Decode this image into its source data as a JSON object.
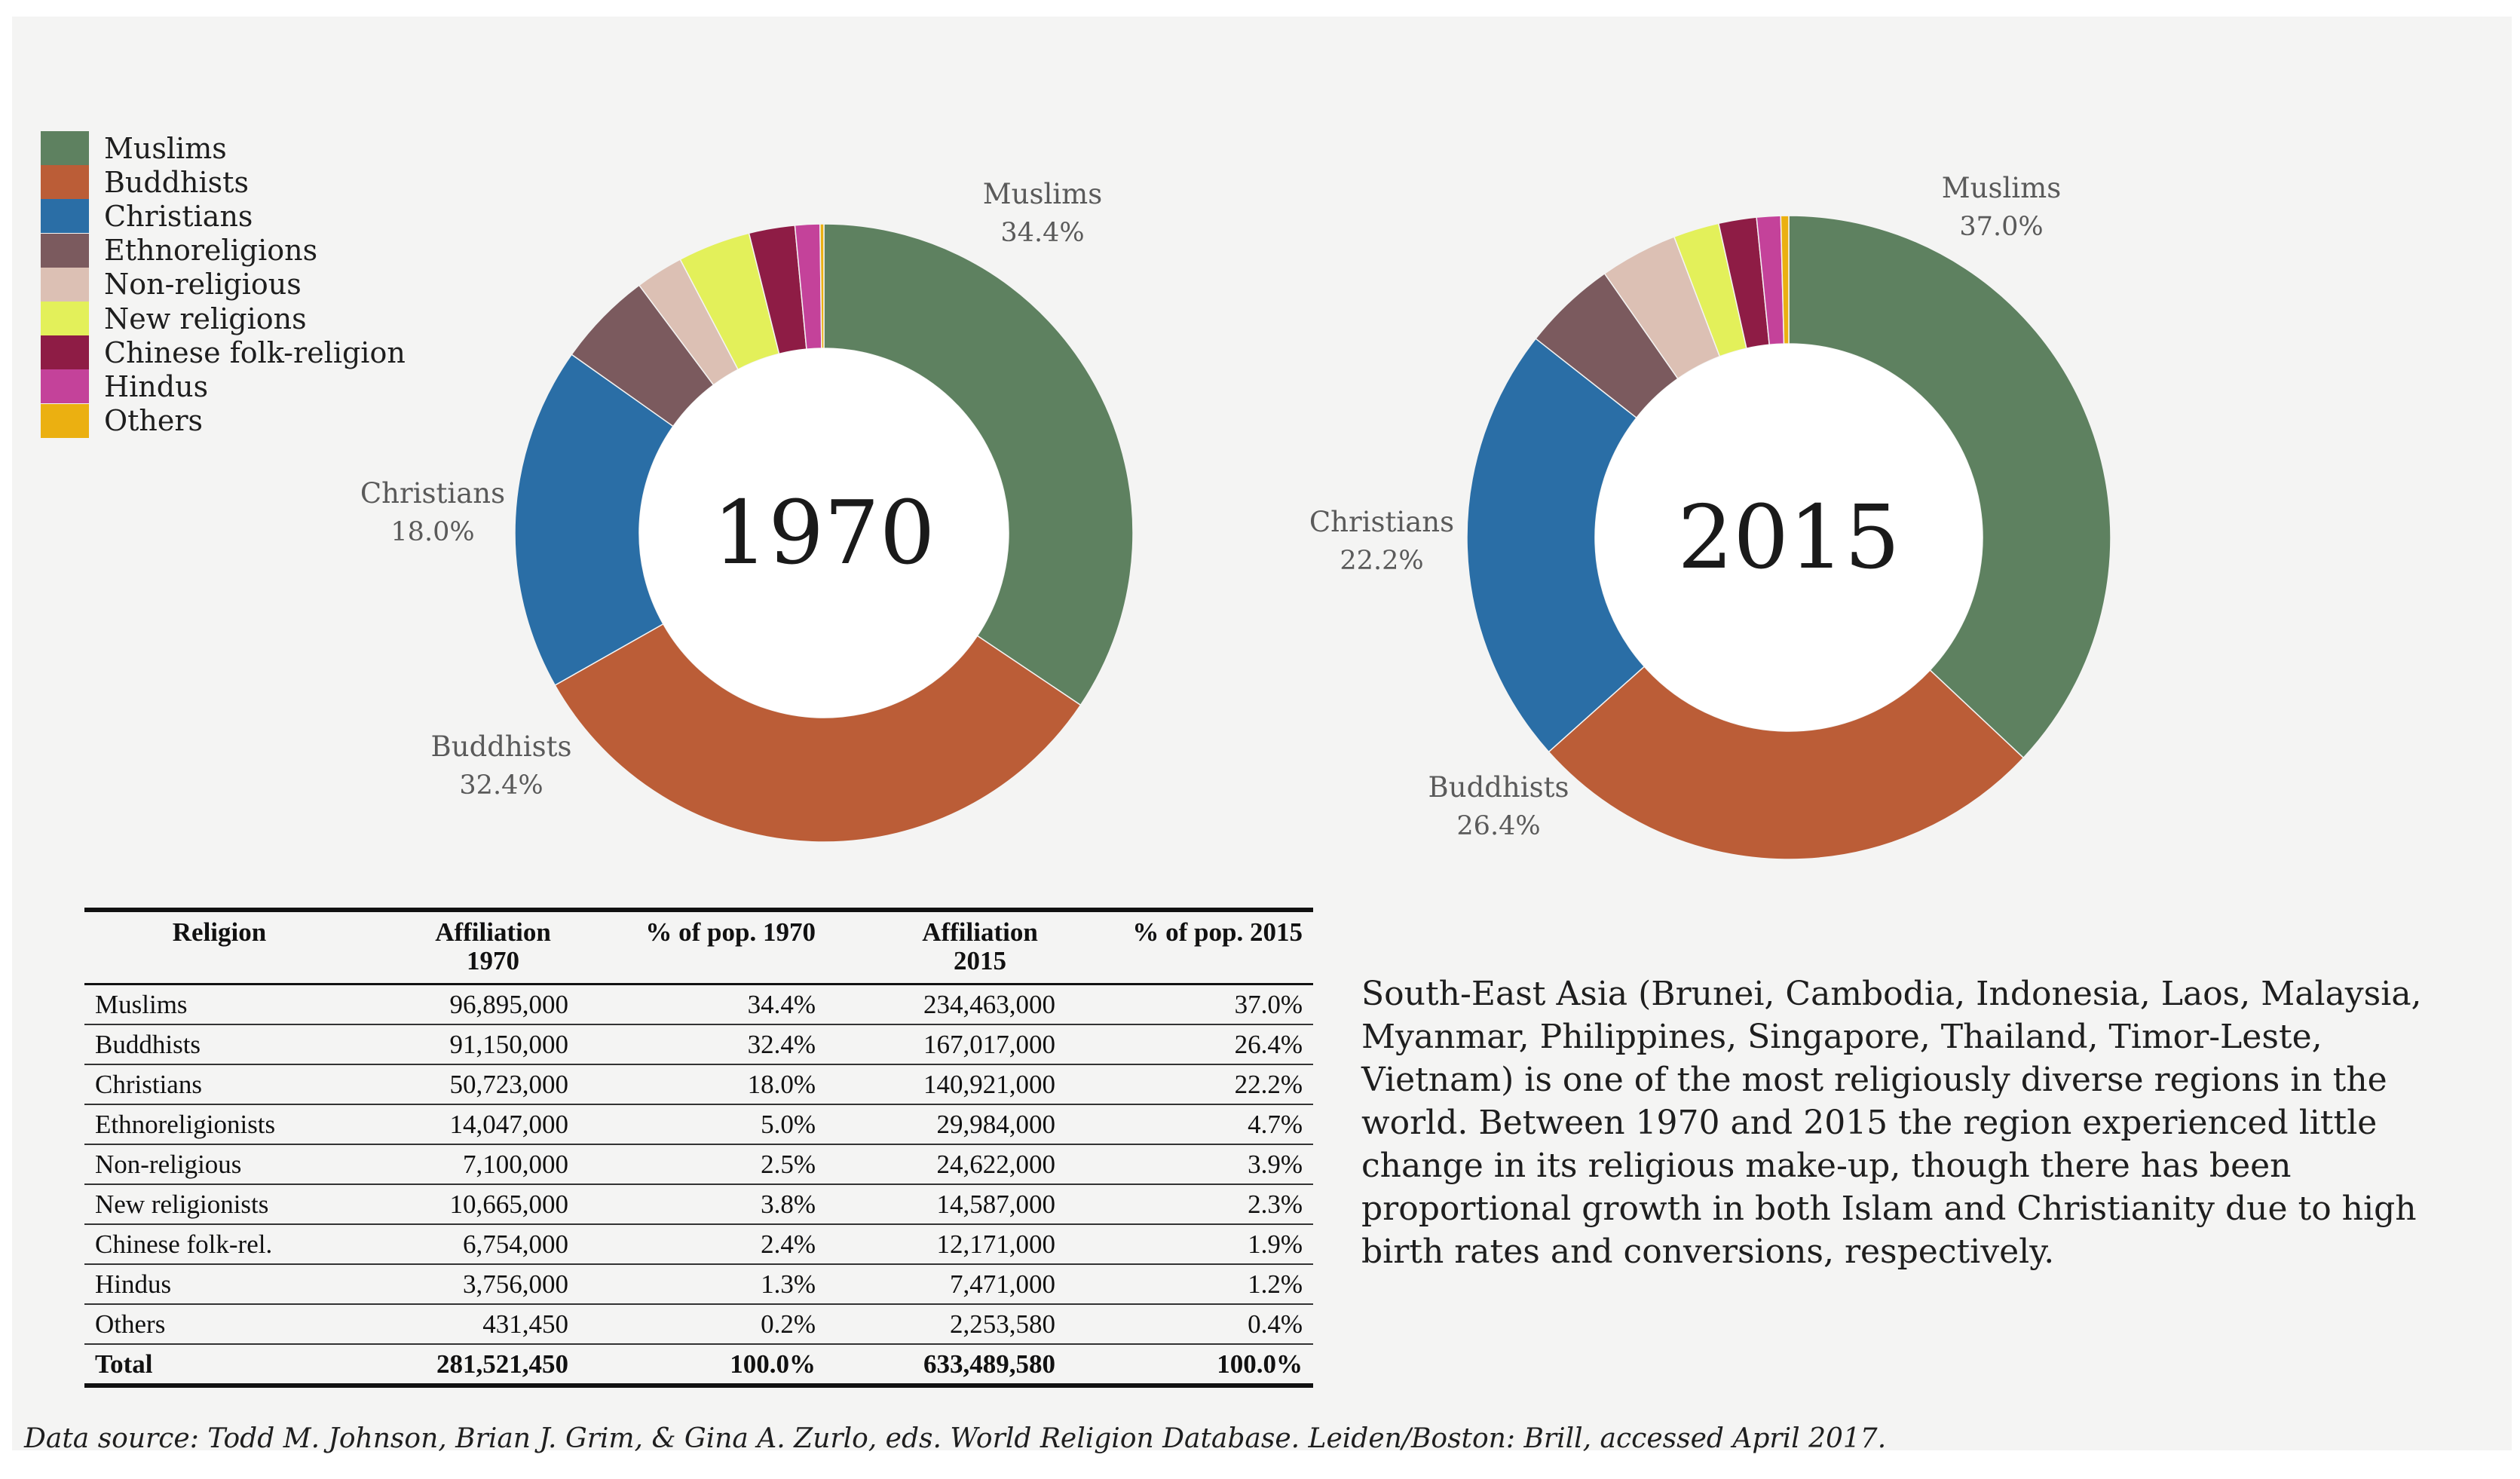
{
  "colors": {
    "Muslims": "#5e8160",
    "Buddhists": "#bb5d37",
    "Christians": "#2a6ea6",
    "Ethnoreligions": "#7b5a5e",
    "Non-religious": "#dcc0b4",
    "New religions": "#e3f05a",
    "Chinese folk-religion": "#8e1c45",
    "Hindus": "#c4429a",
    "Others": "#ebb011"
  },
  "legend": [
    "Muslims",
    "Buddhists",
    "Christians",
    "Ethnoreligions",
    "Non-religious",
    "New religions",
    "Chinese folk-religion",
    "Hindus",
    "Others"
  ],
  "chart_data": [
    {
      "type": "pie",
      "donut": true,
      "center_label": "1970",
      "slices": [
        {
          "name": "Muslims",
          "value": 34.4
        },
        {
          "name": "Buddhists",
          "value": 32.4
        },
        {
          "name": "Christians",
          "value": 18.0
        },
        {
          "name": "Ethnoreligions",
          "value": 5.0
        },
        {
          "name": "Non-religious",
          "value": 2.5
        },
        {
          "name": "New religions",
          "value": 3.8
        },
        {
          "name": "Chinese folk-religion",
          "value": 2.4
        },
        {
          "name": "Hindus",
          "value": 1.3
        },
        {
          "name": "Others",
          "value": 0.2
        }
      ],
      "labels": [
        {
          "name": "Muslims",
          "value": "34.4%"
        },
        {
          "name": "Christians",
          "value": "18.0%"
        },
        {
          "name": "Buddhists",
          "value": "32.4%"
        }
      ]
    },
    {
      "type": "pie",
      "donut": true,
      "center_label": "2015",
      "slices": [
        {
          "name": "Muslims",
          "value": 37.0
        },
        {
          "name": "Buddhists",
          "value": 26.4
        },
        {
          "name": "Christians",
          "value": 22.2
        },
        {
          "name": "Ethnoreligions",
          "value": 4.7
        },
        {
          "name": "Non-religious",
          "value": 3.9
        },
        {
          "name": "New religions",
          "value": 2.3
        },
        {
          "name": "Chinese folk-religion",
          "value": 1.9
        },
        {
          "name": "Hindus",
          "value": 1.2
        },
        {
          "name": "Others",
          "value": 0.4
        }
      ],
      "labels": [
        {
          "name": "Muslims",
          "value": "37.0%"
        },
        {
          "name": "Christians",
          "value": "22.2%"
        },
        {
          "name": "Buddhists",
          "value": "26.4%"
        }
      ]
    }
  ],
  "table": {
    "headers": [
      "Religion",
      "Affiliation 1970",
      "% of pop. 1970",
      "Affiliation 2015",
      "% of pop. 2015"
    ],
    "rows": [
      [
        "Muslims",
        "96,895,000",
        "34.4%",
        "234,463,000",
        "37.0%"
      ],
      [
        "Buddhists",
        "91,150,000",
        "32.4%",
        "167,017,000",
        "26.4%"
      ],
      [
        "Christians",
        "50,723,000",
        "18.0%",
        "140,921,000",
        "22.2%"
      ],
      [
        "Ethnoreligionists",
        "14,047,000",
        "5.0%",
        "29,984,000",
        "4.7%"
      ],
      [
        "Non-religious",
        "7,100,000",
        "2.5%",
        "24,622,000",
        "3.9%"
      ],
      [
        "New religionists",
        "10,665,000",
        "3.8%",
        "14,587,000",
        "2.3%"
      ],
      [
        "Chinese folk-rel.",
        "6,754,000",
        "2.4%",
        "12,171,000",
        "1.9%"
      ],
      [
        "Hindus",
        "3,756,000",
        "1.3%",
        "7,471,000",
        "1.2%"
      ],
      [
        "Others",
        "431,450",
        "0.2%",
        "2,253,580",
        "0.4%"
      ]
    ],
    "total": [
      "Total",
      "281,521,450",
      "100.0%",
      "633,489,580",
      "100.0%"
    ]
  },
  "description": "South-East Asia (Brunei, Cambodia, Indonesia, Laos, Malaysia, Myanmar, Philippines, Singapore, Thailand, Timor-Leste, Vietnam) is one of the most religiously diverse regions in the world. Between 1970 and 2015 the region experienced little change in its religious make-up, though there has been proportional growth in both Islam and Christianity due to high birth rates and conversions, respectively.",
  "source": "Data source: Todd M. Johnson, Brian J. Grim, & Gina A. Zurlo, eds. World Religion Database. Leiden/Boston: Brill, accessed April 2017."
}
